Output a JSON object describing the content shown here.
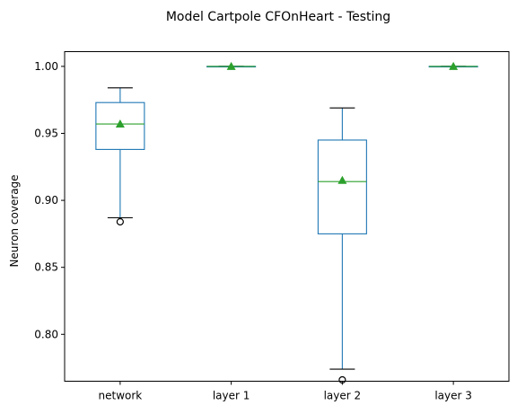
{
  "chart_data": {
    "type": "box",
    "title": "Model Cartpole CFOnHeart - Testing",
    "xlabel": "",
    "ylabel": "Neuron coverage",
    "categories": [
      "network",
      "layer 1",
      "layer 2",
      "layer 3"
    ],
    "ylim": [
      0.765,
      1.011
    ],
    "yticks": [
      0.8,
      0.85,
      0.9,
      0.95,
      1.0
    ],
    "ytick_labels": [
      "0.80",
      "0.85",
      "0.90",
      "0.95",
      "1.00"
    ],
    "grid": false,
    "colors": {
      "box": "#1f77b4",
      "median": "#2ca02c",
      "mean_marker": "#2ca02c",
      "whisker": "#000000",
      "flier": "#000000"
    },
    "boxes": [
      {
        "category": "network",
        "whisker_low": 0.887,
        "q1": 0.938,
        "median": 0.957,
        "q3": 0.973,
        "whisker_high": 0.984,
        "mean": 0.957,
        "outliers": [
          0.884
        ]
      },
      {
        "category": "layer 1",
        "whisker_low": 1.0,
        "q1": 1.0,
        "median": 1.0,
        "q3": 1.0,
        "whisker_high": 1.0,
        "mean": 1.0,
        "outliers": []
      },
      {
        "category": "layer 2",
        "whisker_low": 0.774,
        "q1": 0.875,
        "median": 0.914,
        "q3": 0.945,
        "whisker_high": 0.969,
        "mean": 0.915,
        "outliers": [
          0.766
        ]
      },
      {
        "category": "layer 3",
        "whisker_low": 1.0,
        "q1": 1.0,
        "median": 1.0,
        "q3": 1.0,
        "whisker_high": 1.0,
        "mean": 1.0,
        "outliers": []
      }
    ]
  }
}
